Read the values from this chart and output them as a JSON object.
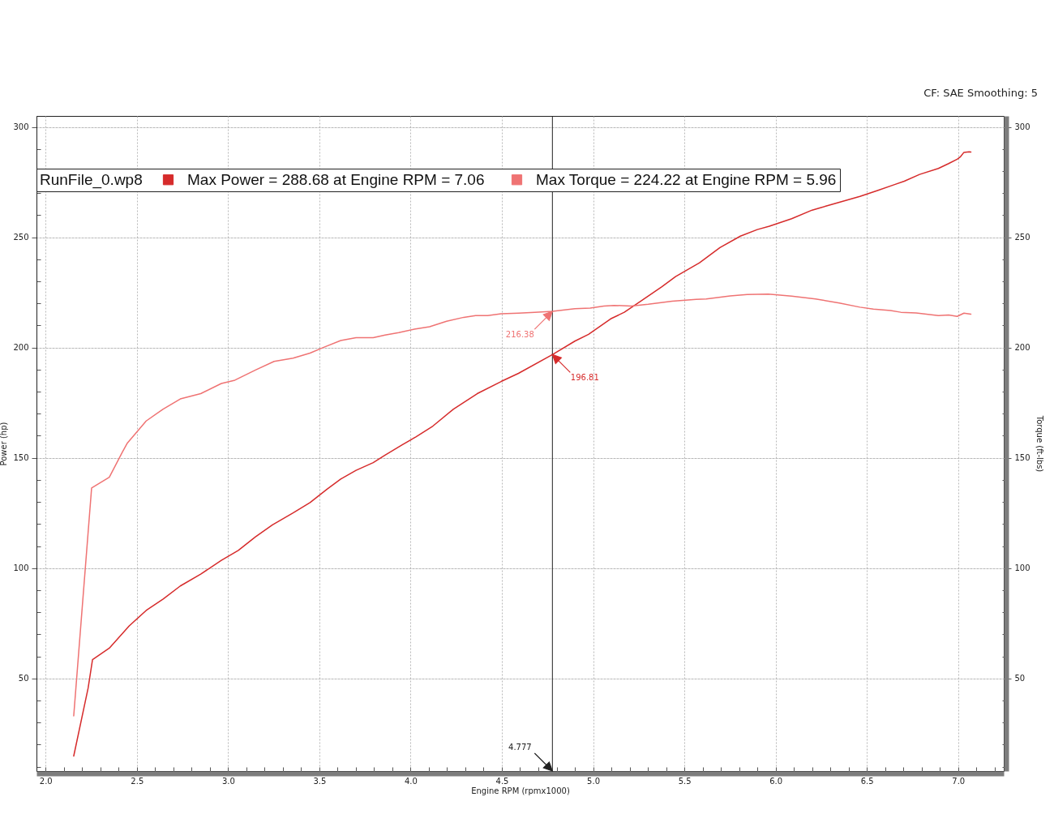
{
  "chart_data": {
    "type": "line",
    "xlabel": "Engine RPM (rpmx1000)",
    "ylabel": "Power (hp)",
    "y2label": "Torque (ft-lbs)",
    "legend_title": "RunFile_0.wp8",
    "legend": "top left",
    "grid": true,
    "annotations": [
      "CF: SAE Smoothing: 5",
      {
        "text": "216.38",
        "x": 4.777,
        "y": 216.38
      },
      {
        "text": "196.81",
        "x": 4.777,
        "y": 196.81
      }
    ],
    "ref_lines": [
      {
        "axis": "x",
        "value": 4.777,
        "label": "4.777",
        "color": "#222222"
      }
    ],
    "xlim": [
      1.95,
      7.25
    ],
    "ylim": [
      8,
      305
    ],
    "y2lim": [
      8,
      305
    ],
    "xticks": [
      {
        "value": 2,
        "label": "2.0"
      },
      {
        "value": 2.1,
        "label": null
      },
      {
        "value": 2.2,
        "label": null
      },
      {
        "value": 2.3,
        "label": null
      },
      {
        "value": 2.4,
        "label": null
      },
      {
        "value": 2.5,
        "label": "2.5"
      },
      {
        "value": 2.6,
        "label": null
      },
      {
        "value": 2.7,
        "label": null
      },
      {
        "value": 2.8,
        "label": null
      },
      {
        "value": 2.9,
        "label": null
      },
      {
        "value": 3,
        "label": "3.0"
      },
      {
        "value": 3.1,
        "label": null
      },
      {
        "value": 3.2,
        "label": null
      },
      {
        "value": 3.3,
        "label": null
      },
      {
        "value": 3.4,
        "label": null
      },
      {
        "value": 3.5,
        "label": "3.5"
      },
      {
        "value": 3.6,
        "label": null
      },
      {
        "value": 3.7,
        "label": null
      },
      {
        "value": 3.8,
        "label": null
      },
      {
        "value": 3.9,
        "label": null
      },
      {
        "value": 4,
        "label": "4.0"
      },
      {
        "value": 4.1,
        "label": null
      },
      {
        "value": 4.2,
        "label": null
      },
      {
        "value": 4.3,
        "label": null
      },
      {
        "value": 4.4,
        "label": null
      },
      {
        "value": 4.5,
        "label": "4.5"
      },
      {
        "value": 4.6,
        "label": null
      },
      {
        "value": 4.7,
        "label": null
      },
      {
        "value": 4.8,
        "label": null
      },
      {
        "value": 4.9,
        "label": null
      },
      {
        "value": 5,
        "label": "5.0"
      },
      {
        "value": 5.1,
        "label": null
      },
      {
        "value": 5.2,
        "label": null
      },
      {
        "value": 5.3,
        "label": null
      },
      {
        "value": 5.4,
        "label": null
      },
      {
        "value": 5.5,
        "label": "5.5"
      },
      {
        "value": 5.6,
        "label": null
      },
      {
        "value": 5.7,
        "label": null
      },
      {
        "value": 5.8,
        "label": null
      },
      {
        "value": 5.9,
        "label": null
      },
      {
        "value": 6,
        "label": "6.0"
      },
      {
        "value": 6.1,
        "label": null
      },
      {
        "value": 6.2,
        "label": null
      },
      {
        "value": 6.3,
        "label": null
      },
      {
        "value": 6.4,
        "label": null
      },
      {
        "value": 6.5,
        "label": "6.5"
      },
      {
        "value": 6.6,
        "label": null
      },
      {
        "value": 6.7,
        "label": null
      },
      {
        "value": 6.8,
        "label": null
      },
      {
        "value": 6.9,
        "label": null
      },
      {
        "value": 7,
        "label": "7.0"
      },
      {
        "value": 7.1,
        "label": null
      },
      {
        "value": 7.2,
        "label": null
      }
    ],
    "yticks": [
      {
        "value": 10,
        "label": null
      },
      {
        "value": 20,
        "label": null
      },
      {
        "value": 30,
        "label": null
      },
      {
        "value": 40,
        "label": null
      },
      50,
      {
        "value": 60,
        "label": null
      },
      {
        "value": 70,
        "label": null
      },
      {
        "value": 80,
        "label": null
      },
      {
        "value": 90,
        "label": null
      },
      100,
      {
        "value": 110,
        "label": null
      },
      {
        "value": 120,
        "label": null
      },
      {
        "value": 130,
        "label": null
      },
      {
        "value": 140,
        "label": null
      },
      150,
      {
        "value": 160,
        "label": null
      },
      {
        "value": 170,
        "label": null
      },
      {
        "value": 180,
        "label": null
      },
      {
        "value": 190,
        "label": null
      },
      200,
      {
        "value": 210,
        "label": null
      },
      {
        "value": 220,
        "label": null
      },
      {
        "value": 230,
        "label": null
      },
      {
        "value": 240,
        "label": null
      },
      250,
      {
        "value": 260,
        "label": null
      },
      {
        "value": 270,
        "label": null
      },
      {
        "value": 280,
        "label": null
      },
      {
        "value": 290,
        "label": null
      },
      300
    ],
    "y2ticks": [
      {
        "value": 10,
        "label": null
      },
      {
        "value": 20,
        "label": null
      },
      {
        "value": 30,
        "label": null
      },
      {
        "value": 40,
        "label": null
      },
      50,
      {
        "value": 60,
        "label": null
      },
      {
        "value": 70,
        "label": null
      },
      {
        "value": 80,
        "label": null
      },
      {
        "value": 90,
        "label": null
      },
      100,
      {
        "value": 110,
        "label": null
      },
      {
        "value": 120,
        "label": null
      },
      {
        "value": 130,
        "label": null
      },
      {
        "value": 140,
        "label": null
      },
      150,
      {
        "value": 160,
        "label": null
      },
      {
        "value": 170,
        "label": null
      },
      {
        "value": 180,
        "label": null
      },
      {
        "value": 190,
        "label": null
      },
      200,
      {
        "value": 210,
        "label": null
      },
      {
        "value": 220,
        "label": null
      },
      {
        "value": 230,
        "label": null
      },
      {
        "value": 240,
        "label": null
      },
      250,
      {
        "value": 260,
        "label": null
      },
      {
        "value": 270,
        "label": null
      },
      {
        "value": 280,
        "label": null
      },
      {
        "value": 290,
        "label": null
      },
      300
    ],
    "series": [
      {
        "name": "Max Power = 288.68 at Engine RPM = 7.06",
        "color": "#d62b2b",
        "x": [
          2.154,
          2.233,
          2.257,
          2.349,
          2.458,
          2.551,
          2.644,
          2.738,
          2.85,
          2.963,
          3.056,
          3.15,
          3.243,
          3.356,
          3.449,
          3.542,
          3.617,
          3.701,
          3.795,
          3.86,
          3.954,
          4.029,
          4.122,
          4.235,
          4.365,
          4.496,
          4.591,
          4.777,
          4.9,
          4.975,
          5.096,
          5.171,
          5.255,
          5.377,
          5.452,
          5.583,
          5.695,
          5.807,
          5.9,
          5.966,
          6.088,
          6.2,
          6.275,
          6.462,
          6.555,
          6.649,
          6.705,
          6.789,
          6.892,
          6.948,
          6.995,
          7.013,
          7.032,
          7.06,
          7.07
        ],
        "values": [
          14.8,
          45.6,
          58.5,
          63.7,
          73.8,
          80.8,
          86.0,
          91.9,
          97.3,
          103.5,
          108.0,
          114.2,
          119.6,
          125.0,
          129.7,
          135.8,
          140.4,
          144.3,
          147.8,
          151.2,
          155.9,
          159.5,
          164.4,
          172.1,
          179.1,
          184.6,
          188.3,
          196.8,
          202.9,
          206.0,
          213.0,
          216.0,
          220.7,
          227.6,
          232.2,
          238.4,
          245.3,
          250.5,
          253.5,
          255.0,
          258.4,
          262.3,
          264.1,
          268.5,
          271.1,
          273.8,
          275.4,
          278.5,
          281.2,
          283.4,
          285.4,
          286.5,
          288.5,
          288.7,
          288.6
        ]
      },
      {
        "name": "Max Torque = 224.22 at Engine RPM = 5.96",
        "color": "#ef7373",
        "axis": "y2",
        "x": [
          2.154,
          2.252,
          2.349,
          2.42,
          2.448,
          2.551,
          2.644,
          2.738,
          2.85,
          2.963,
          3.037,
          3.15,
          3.252,
          3.356,
          3.449,
          3.524,
          3.617,
          3.701,
          3.795,
          3.86,
          3.935,
          4.02,
          4.104,
          4.197,
          4.291,
          4.356,
          4.422,
          4.496,
          4.591,
          4.68,
          4.777,
          4.9,
          4.984,
          5.059,
          5.115,
          5.208,
          5.302,
          5.433,
          5.564,
          5.62,
          5.751,
          5.844,
          5.96,
          6.088,
          6.219,
          6.349,
          6.462,
          6.536,
          6.63,
          6.686,
          6.77,
          6.892,
          6.948,
          6.995,
          7.032,
          7.07
        ],
        "values": [
          33.0,
          136.3,
          141.2,
          152.5,
          156.7,
          166.7,
          172.1,
          176.7,
          179.1,
          183.7,
          185.2,
          189.8,
          193.7,
          195.2,
          197.5,
          200.1,
          203.2,
          204.5,
          204.5,
          205.7,
          206.8,
          208.3,
          209.4,
          211.9,
          213.7,
          214.5,
          214.5,
          215.3,
          215.6,
          216.0,
          216.4,
          217.6,
          217.9,
          218.8,
          219.1,
          218.8,
          219.6,
          221.0,
          221.8,
          222.0,
          223.4,
          224.0,
          224.2,
          223.3,
          222.0,
          220.2,
          218.3,
          217.4,
          216.8,
          216.0,
          215.7,
          214.5,
          214.8,
          214.1,
          215.6,
          215.1
        ]
      }
    ]
  }
}
